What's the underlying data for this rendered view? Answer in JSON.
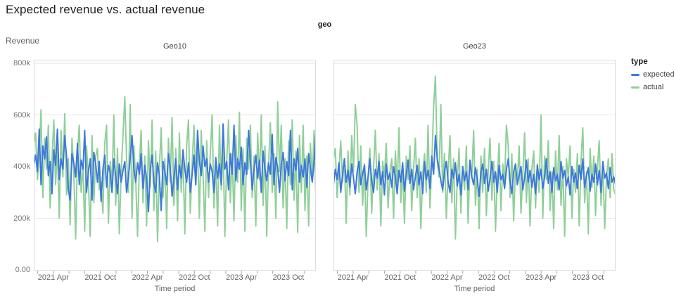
{
  "page": {
    "title": "Expected revenue vs. actual revenue"
  },
  "chart_data": {
    "type": "line",
    "title": "Expected revenue vs. actual revenue",
    "facet_field_label": "geo",
    "x": {
      "label": "Time period",
      "start": "2021 Jan",
      "end": "2023 Dec",
      "frequency": "weekly",
      "tick_labels": [
        "2021 Apr",
        "2021 Oct",
        "2022 Apr",
        "2022 Oct",
        "2023 Apr",
        "2023 Oct"
      ]
    },
    "y": {
      "label": "Revenue",
      "tick_labels": [
        "0.00",
        "200k",
        "400k",
        "600k",
        "800k"
      ],
      "tick_values_k": [
        0,
        200,
        400,
        600,
        800
      ],
      "ylim_k": [
        0,
        800
      ],
      "value_unit": "thousands"
    },
    "legend": {
      "title": "type",
      "position": "right",
      "items": [
        {
          "label": "expected",
          "color": "#3d78dc"
        },
        {
          "label": "actual",
          "color": "#90cf9a"
        }
      ]
    },
    "grid": true,
    "facets": [
      {
        "title": "Geo10",
        "series": [
          {
            "name": "expected",
            "values_k": [
              405,
              445,
              380,
              545,
              330,
              480,
              430,
              515,
              365,
              420,
              295,
              465,
              405,
              545,
              350,
              430,
              390,
              520,
              440,
              310,
              270,
              450,
              415,
              360,
              490,
              330,
              425,
              390,
              540,
              300,
              380,
              430,
              270,
              455,
              410,
              340,
              420,
              265,
              390,
              445,
              320,
              405,
              375,
              300,
              430,
              365,
              295,
              410,
              340,
              385,
              420,
              300,
              360,
              435,
              520,
              390,
              340,
              415,
              370,
              450,
              315,
              405,
              355,
              225,
              390,
              445,
              340,
              300,
              415,
              365,
              230,
              420,
              380,
              330,
              450,
              395,
              285,
              360,
              430,
              310,
              405,
              355,
              465,
              390,
              340,
              415,
              300,
              370,
              445,
              330,
              540,
              420,
              365,
              480,
              400,
              430,
              340,
              410,
              380,
              300,
              435,
              355,
              410,
              330,
              565,
              390,
              420,
              310,
              450,
              370,
              560,
              345,
              430,
              390,
              475,
              330,
              415,
              370,
              540,
              420,
              310,
              390,
              445,
              355,
              425,
              300,
              460,
              390,
              345,
              415,
              370,
              525,
              330,
              435,
              395,
              300,
              410,
              455,
              345,
              420,
              365,
              540,
              310,
              430,
              385,
              470,
              340,
              405,
              360,
              430,
              320,
              450,
              395,
              340,
              420,
              530
            ]
          },
          {
            "name": "actual",
            "values_k": [
              490,
              530,
              350,
              445,
              620,
              280,
              510,
              390,
              560,
              240,
              430,
              580,
              330,
              470,
              200,
              540,
              360,
              605,
              290,
              430,
              175,
              510,
              380,
              120,
              450,
              560,
              300,
              410,
              150,
              480,
              350,
              130,
              520,
              260,
              440,
              470,
              310,
              340,
              220,
              490,
              560,
              180,
              420,
              330,
              600,
              250,
              470,
              140,
              380,
              520,
              670,
              430,
              300,
              640,
              200,
              480,
              350,
              130,
              410,
              540,
              260,
              440,
              170,
              500,
              320,
              580,
              230,
              460,
              110,
              390,
              550,
              280,
              430,
              160,
              510,
              340,
              590,
              250,
              470,
              190,
              530,
              300,
              450,
              140,
              480,
              580,
              220,
              410,
              560,
              330,
              480,
              200,
              540,
              370,
              150,
              500,
              280,
              450,
              600,
              240,
              430,
              170,
              560,
              310,
              490,
              130,
              420,
              580,
              260,
              450,
              190,
              520,
              340,
              610,
              230,
              470,
              150,
              510,
              390,
              560,
              280,
              440,
              170,
              530,
              350,
              600,
              250,
              480,
              130,
              410,
              570,
              300,
              450,
              200,
              650,
              380,
              560,
              240,
              430,
              160,
              500,
              330,
              580,
              270,
              460,
              145,
              520,
              300,
              560,
              230,
              440,
              170,
              490,
              350,
              540,
              280
            ]
          }
        ]
      },
      {
        "title": "Geo23",
        "series": [
          {
            "name": "expected",
            "values_k": [
              330,
              390,
              350,
              415,
              300,
              370,
              430,
              340,
              385,
              320,
              410,
              355,
              295,
              380,
              420,
              330,
              370,
              405,
              310,
              360,
              430,
              345,
              300,
              390,
              355,
              420,
              330,
              380,
              290,
              410,
              350,
              375,
              320,
              400,
              360,
              295,
              385,
              340,
              415,
              305,
              370,
              425,
              335,
              390,
              310,
              360,
              405,
              330,
              380,
              295,
              420,
              350,
              385,
              315,
              440,
              370,
              520,
              430,
              390,
              345,
              310,
              380,
              420,
              340,
              300,
              390,
              355,
              415,
              325,
              370,
              290,
              400,
              345,
              380,
              310,
              425,
              360,
              330,
              395,
              350,
              285,
              375,
              410,
              335,
              390,
              305,
              355,
              420,
              340,
              380,
              300,
              405,
              350,
              370,
              315,
              390,
              430,
              345,
              295,
              380,
              410,
              330,
              365,
              400,
              310,
              355,
              425,
              340,
              385,
              320,
              370,
              295,
              405,
              350,
              390,
              315,
              360,
              430,
              335,
              380,
              300,
              395,
              345,
              370,
              310,
              420,
              355,
              385,
              325,
              360,
              290,
              400,
              340,
              375,
              315,
              405,
              350,
              430,
              320,
              365,
              395,
              305,
              370,
              340,
              410,
              330,
              385,
              300,
              420,
              355,
              375,
              315,
              395,
              340,
              360,
              330
            ]
          },
          {
            "name": "actual",
            "values_k": [
              430,
              470,
              280,
              390,
              500,
              340,
              430,
              180,
              460,
              290,
              520,
              380,
              640,
              560,
              300,
              480,
              250,
              410,
              130,
              360,
              470,
              220,
              390,
              540,
              310,
              450,
              170,
              420,
              360,
              490,
              240,
              380,
              430,
              200,
              460,
              310,
              550,
              260,
              400,
              180,
              440,
              350,
              480,
              230,
              390,
              510,
              280,
              430,
              160,
              370,
              450,
              300,
              560,
              240,
              410,
              630,
              750,
              420,
              360,
              640,
              300,
              450,
              200,
              380,
              520,
              260,
              430,
              120,
              350,
              470,
              220,
              400,
              310,
              480,
              180,
              420,
              360,
              540,
              250,
              390,
              160,
              440,
              300,
              470,
              210,
              380,
              510,
              270,
              420,
              150,
              360,
              490,
              230,
              410,
              330,
              560,
              480,
              280,
              450,
              190,
              400,
              340,
              480,
              220,
              370,
              530,
              260,
              430,
              170,
              390,
              460,
              240,
              410,
              300,
              600,
              200,
              440,
              350,
              500,
              230,
              380,
              160,
              460,
              310,
              520,
              250,
              400,
              130,
              430,
              360,
              480,
              200,
              390,
              300,
              450,
              170,
              420,
              550,
              260,
              380,
              140,
              470,
              320,
              440,
              210,
              390,
              500,
              250,
              410,
              160,
              360,
              430,
              280,
              450,
              310,
              290
            ]
          }
        ]
      }
    ],
    "style": {
      "grid_color": "#e6e6e6",
      "border_color": "#dadce0",
      "tick_color": "#9e9e9e",
      "line_width": 2
    }
  }
}
